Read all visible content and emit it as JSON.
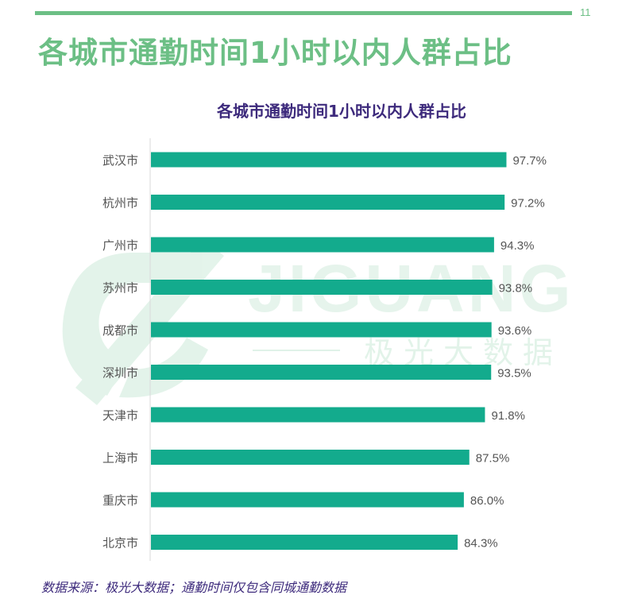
{
  "page": {
    "number": "11",
    "title": "各城市通勤时间1小时以内人群占比",
    "source_note": "数据来源：极光大数据；通勤时间仅包含同城通勤数据"
  },
  "watermark": {
    "brand_en": "JIGUANG",
    "brand_cn": "极光大数据",
    "icon": "jiguang-logo-icon"
  },
  "colors": {
    "accent": "#6cbf85",
    "bar": "#13ab8d",
    "title_purple": "#3d2a7c"
  },
  "chart_data": {
    "type": "bar",
    "orientation": "horizontal",
    "title": "各城市通勤时间1小时以内人群占比",
    "xlabel": "",
    "ylabel": "",
    "unit": "%",
    "xlim": [
      0,
      100
    ],
    "grid": false,
    "legend": "none",
    "categories": [
      "武汉市",
      "杭州市",
      "广州市",
      "苏州市",
      "成都市",
      "深圳市",
      "天津市",
      "上海市",
      "重庆市",
      "北京市"
    ],
    "values": [
      97.7,
      97.2,
      94.3,
      93.8,
      93.6,
      93.5,
      91.8,
      87.5,
      86.0,
      84.3
    ],
    "labels": [
      "97.7%",
      "97.2%",
      "94.3%",
      "93.8%",
      "93.6%",
      "93.5%",
      "91.8%",
      "87.5%",
      "86.0%",
      "84.3%"
    ]
  }
}
